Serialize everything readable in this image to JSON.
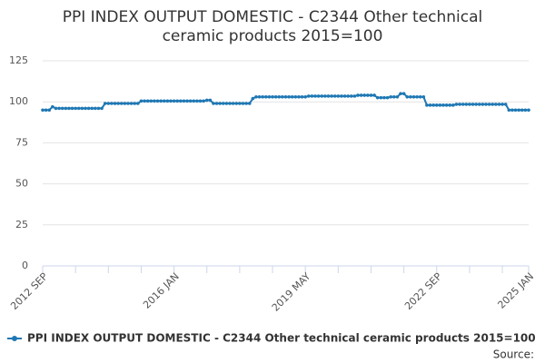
{
  "chart_data": {
    "type": "line",
    "title": [
      "PPI INDEX OUTPUT DOMESTIC - C2344 Other technical",
      "ceramic products 2015=100"
    ],
    "source": "Source:",
    "categories": [
      "2012 SEP",
      null,
      null,
      null,
      null,
      null,
      null,
      null,
      null,
      null,
      null,
      null,
      null,
      null,
      null,
      null,
      null,
      null,
      null,
      null,
      null,
      null,
      null,
      null,
      null,
      null,
      null,
      null,
      null,
      null,
      null,
      null,
      null,
      null,
      null,
      null,
      null,
      null,
      null,
      null,
      "2016 JAN",
      null,
      null,
      null,
      null,
      null,
      null,
      null,
      null,
      null,
      null,
      null,
      null,
      null,
      null,
      null,
      null,
      null,
      null,
      null,
      null,
      null,
      null,
      null,
      null,
      null,
      null,
      null,
      null,
      null,
      null,
      null,
      null,
      null,
      null,
      null,
      null,
      null,
      null,
      null,
      "2019 MAY",
      null,
      null,
      null,
      null,
      null,
      null,
      null,
      null,
      null,
      null,
      null,
      null,
      null,
      null,
      null,
      null,
      null,
      null,
      null,
      null,
      null,
      null,
      null,
      null,
      null,
      null,
      null,
      null,
      null,
      null,
      null,
      null,
      null,
      null,
      null,
      null,
      null,
      null,
      null,
      "2022 SEP",
      null,
      null,
      null,
      null,
      null,
      null,
      null,
      null,
      null,
      null,
      null,
      null,
      null,
      null,
      null,
      null,
      null,
      null,
      null,
      null,
      null,
      null,
      null,
      null,
      null,
      null,
      null,
      "2025 JAN"
    ],
    "series": [
      {
        "name": "PPI INDEX OUTPUT DOMESTIC - C2344 Other technical ceramic products 2015=100",
        "color": "#1f78b4",
        "values": [
          95,
          95,
          95,
          97,
          96,
          96,
          96,
          96,
          96,
          96,
          96,
          96,
          96,
          96,
          96,
          96,
          96,
          96,
          96,
          99,
          99,
          99,
          99,
          99,
          99,
          99,
          99,
          99,
          99,
          99,
          100.5,
          100.5,
          100.5,
          100.5,
          100.5,
          100.5,
          100.5,
          100.5,
          100.5,
          100.5,
          100.5,
          100.5,
          100.5,
          100.5,
          100.5,
          100.5,
          100.5,
          100.5,
          100.5,
          100.5,
          101,
          101,
          99,
          99,
          99,
          99,
          99,
          99,
          99,
          99,
          99,
          99,
          99,
          99,
          102,
          103,
          103,
          103,
          103,
          103,
          103,
          103,
          103,
          103,
          103,
          103,
          103,
          103,
          103,
          103,
          103,
          103.5,
          103.5,
          103.5,
          103.5,
          103.5,
          103.5,
          103.5,
          103.5,
          103.5,
          103.5,
          103.5,
          103.5,
          103.5,
          103.5,
          103.5,
          104,
          104,
          104,
          104,
          104,
          104,
          102.5,
          102.5,
          102.5,
          102.5,
          103,
          103,
          103,
          105,
          105,
          103,
          103,
          103,
          103,
          103,
          103,
          98,
          98,
          98,
          98,
          98,
          98,
          98,
          98,
          98,
          98.5,
          98.5,
          98.5,
          98.5,
          98.5,
          98.5,
          98.5,
          98.5,
          98.5,
          98.5,
          98.5,
          98.5,
          98.5,
          98.5,
          98.5,
          98.5,
          95,
          95,
          95,
          95,
          95,
          95,
          95
        ]
      }
    ],
    "ylim": [
      0,
      125
    ],
    "yticks": [
      0,
      25,
      50,
      75,
      100,
      125
    ],
    "grid": true
  }
}
